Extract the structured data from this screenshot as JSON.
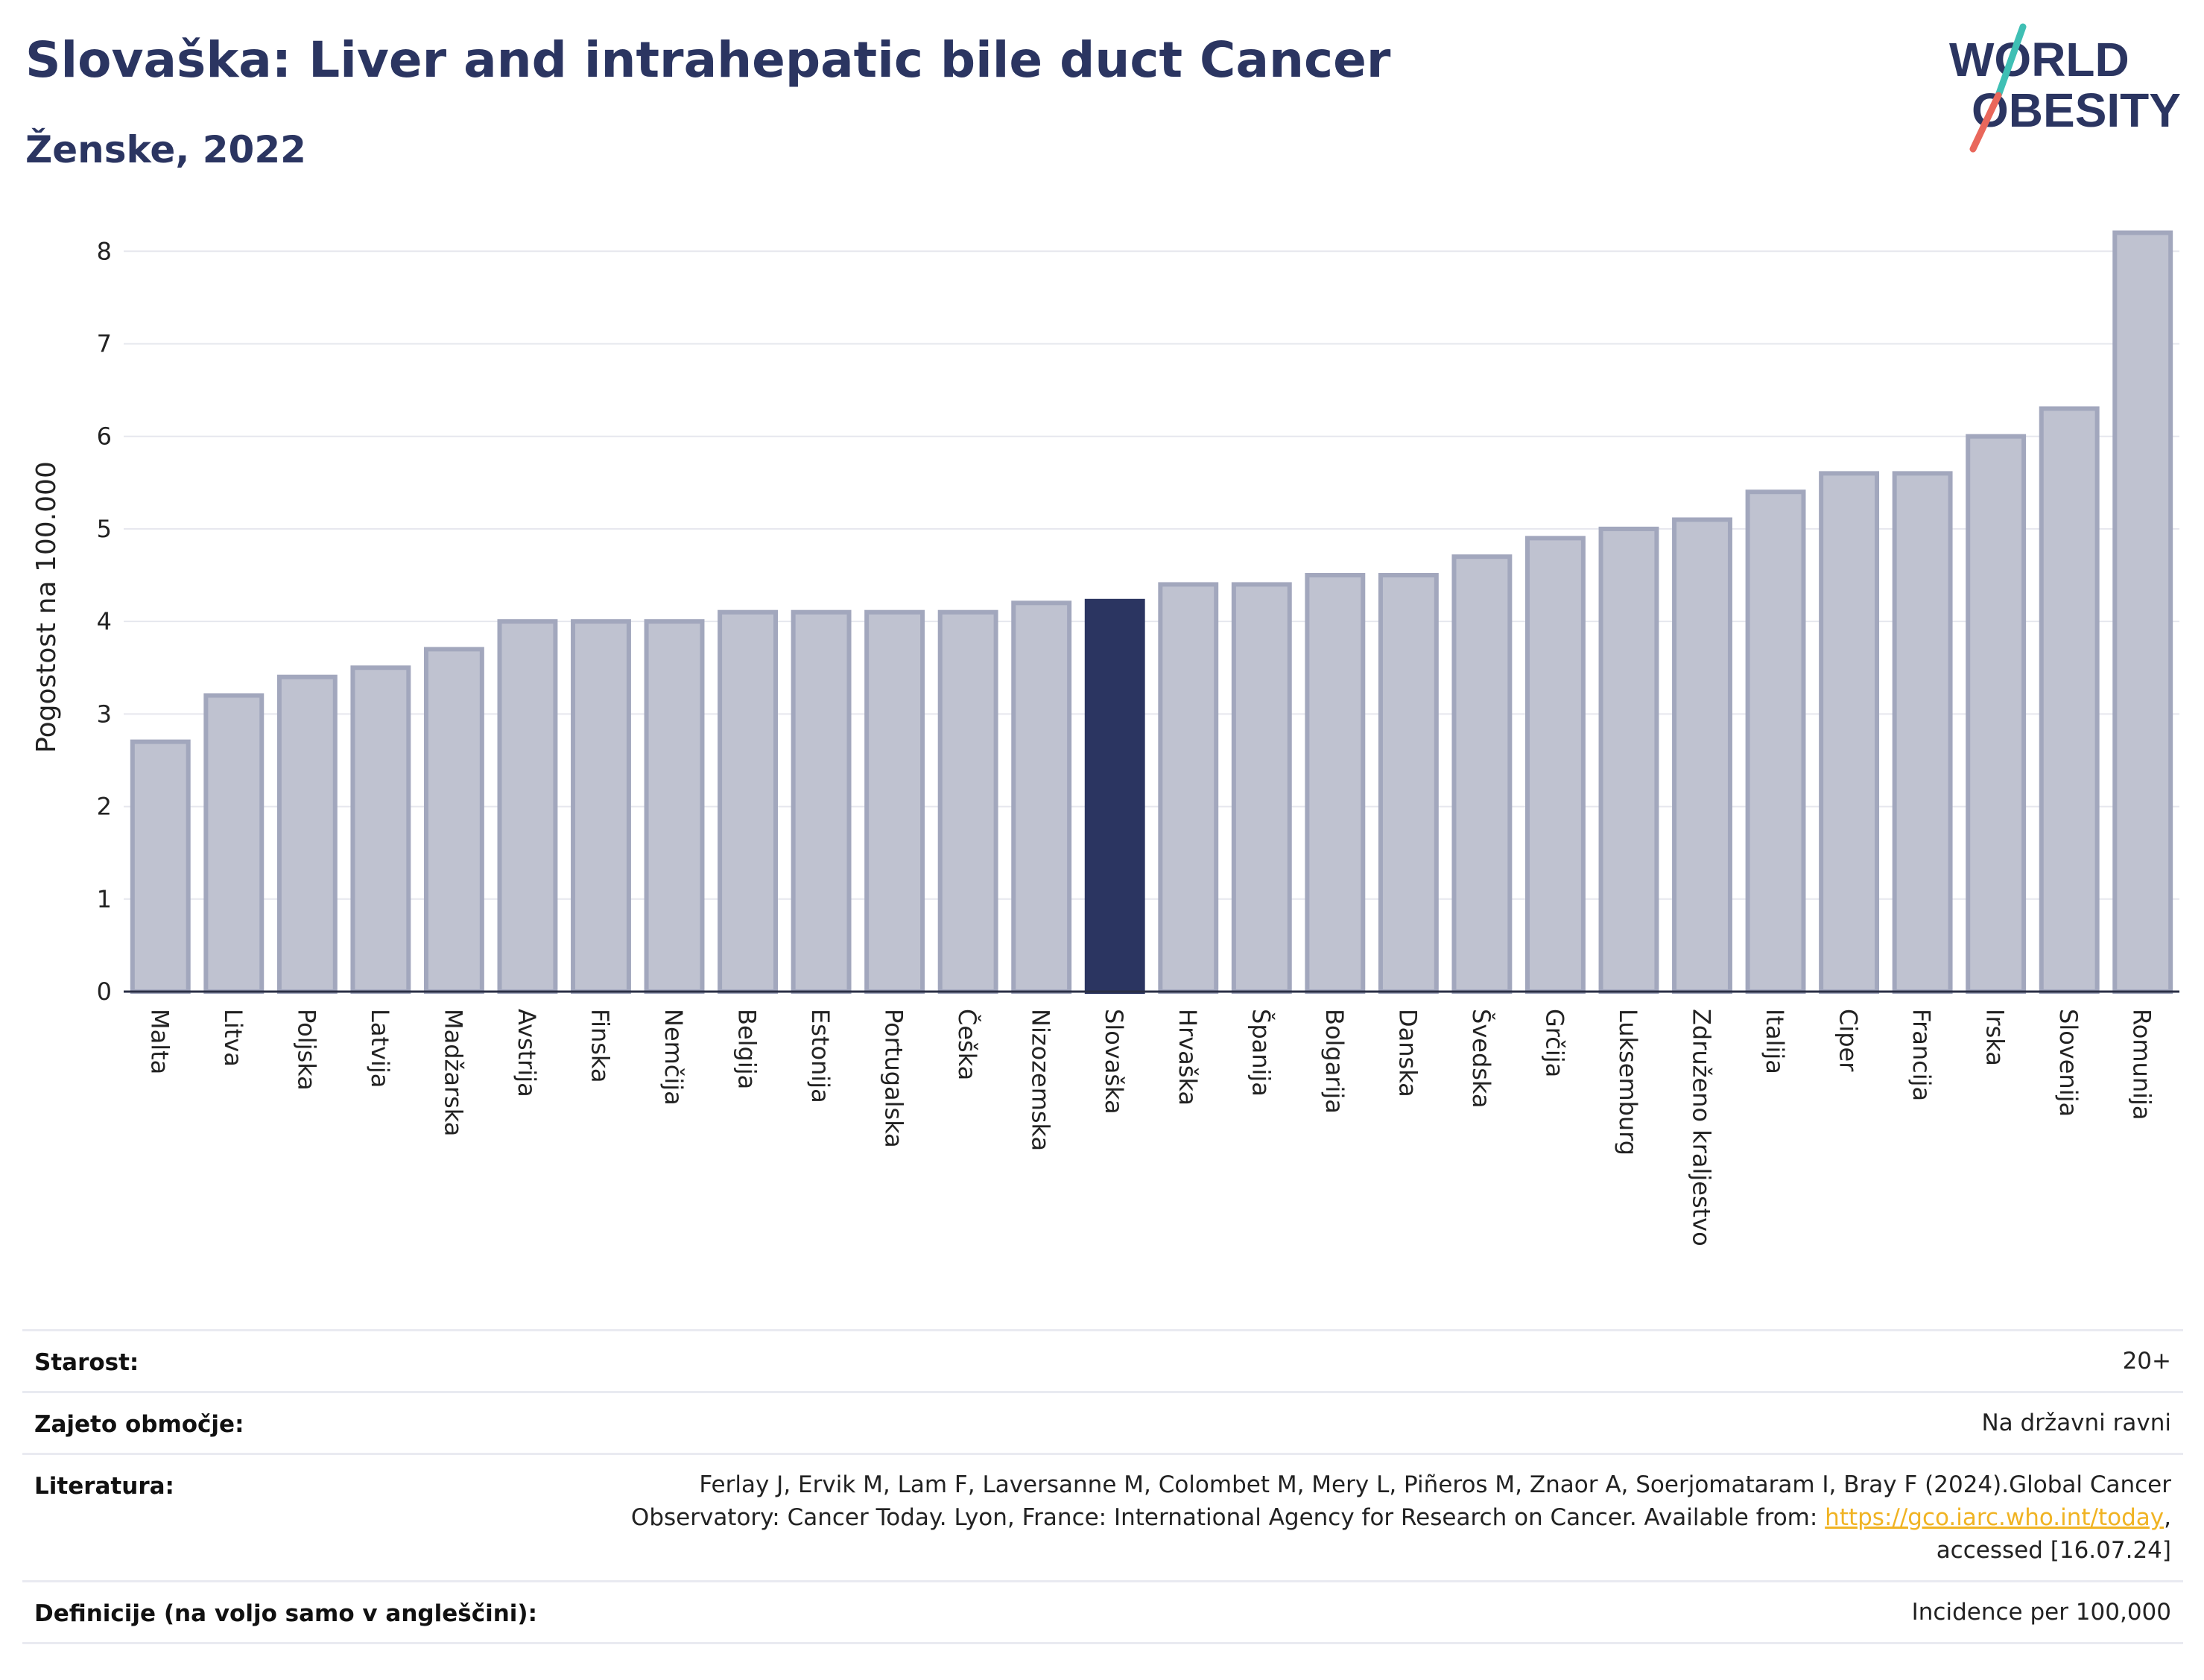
{
  "header": {
    "title": "Slovaška: Liver and intrahepatic bile duct Cancer",
    "subtitle": "Ženske, 2022"
  },
  "logo": {
    "line1": "WORLD",
    "line2": "OBESITY",
    "icon": "world-obesity-logo"
  },
  "colors": {
    "bar": "#bfc2d0",
    "bar_edge": "#a2a7bd",
    "highlight": "#2b3561",
    "title": "#2b3561",
    "link": "#f0b323"
  },
  "chart_data": {
    "type": "bar",
    "ylabel": "Pogostost na 100.000",
    "xlabel": "",
    "ylim": [
      0,
      8.3
    ],
    "yticks": [
      0,
      1,
      2,
      3,
      4,
      5,
      6,
      7,
      8
    ],
    "grid": true,
    "highlight": "Slovaška",
    "categories": [
      "Malta",
      "Litva",
      "Poljska",
      "Latvija",
      "Madžarska",
      "Avstrija",
      "Finska",
      "Nemčija",
      "Belgija",
      "Estonija",
      "Portugalska",
      "Češka",
      "Nizozemska",
      "Slovaška",
      "Hrvaška",
      "Španija",
      "Bolgarija",
      "Danska",
      "Švedska",
      "Grčija",
      "Luksemburg",
      "Združeno kraljestvo",
      "Italija",
      "Ciper",
      "Francija",
      "Irska",
      "Slovenija",
      "Romunija"
    ],
    "values": [
      2.7,
      3.2,
      3.4,
      3.5,
      3.7,
      4.0,
      4.0,
      4.0,
      4.1,
      4.1,
      4.1,
      4.1,
      4.2,
      4.22,
      4.4,
      4.4,
      4.5,
      4.5,
      4.7,
      4.9,
      5.0,
      5.1,
      5.4,
      5.6,
      5.6,
      6.0,
      6.3,
      8.2
    ]
  },
  "meta": {
    "age_label": "Starost:",
    "age_value": "20+",
    "coverage_label": "Zajeto območje:",
    "coverage_value": "Na državni ravni",
    "ref_label": "Literatura:",
    "ref_line1": "Ferlay J, Ervik M, Lam F, Laversanne M, Colombet M, Mery L, Piñeros M, Znaor A, Soerjomataram I, Bray F (2024).Global Cancer",
    "ref_line2_prefix": "Observatory: Cancer Today. Lyon, France: International Agency for Research on Cancer. Available from: ",
    "ref_link": "https://gco.iarc.who.int/today",
    "ref_line2_suffix": ",",
    "ref_line3": "accessed [16.07.24]",
    "def_label": "Definicije (na voljo samo v angleščini):",
    "def_value": "Incidence per 100,000"
  }
}
